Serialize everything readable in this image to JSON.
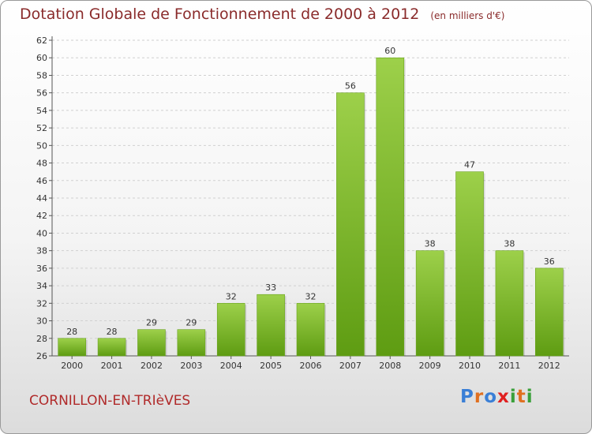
{
  "title": "Dotation Globale de Fonctionnement de 2000 à 2012",
  "title_unit": "(en milliers d'€)",
  "commune": "CORNILLON-EN-TRIèVES",
  "logo": "Proxiti",
  "logo_colors": [
    "#3a7fd6",
    "#e07020",
    "#3a7fd6",
    "#e02020",
    "#3aa03a",
    "#e07020",
    "#3aa03a"
  ],
  "chart_data": {
    "type": "bar",
    "title": "Dotation Globale de Fonctionnement de 2000 à 2012",
    "subtitle": "(en milliers d'€)",
    "categories": [
      "2000",
      "2001",
      "2002",
      "2003",
      "2004",
      "2005",
      "2006",
      "2007",
      "2008",
      "2009",
      "2010",
      "2011",
      "2012"
    ],
    "values": [
      28,
      28,
      29,
      29,
      32,
      33,
      32,
      56,
      60,
      38,
      47,
      38,
      36
    ],
    "ylim": [
      26,
      62
    ],
    "yticks": [
      26,
      28,
      30,
      32,
      34,
      36,
      38,
      40,
      42,
      44,
      46,
      48,
      50,
      52,
      54,
      56,
      58,
      60,
      62
    ],
    "grid": true,
    "bar_color_top": "#9dd04a",
    "bar_color_bottom": "#5e9c12"
  }
}
